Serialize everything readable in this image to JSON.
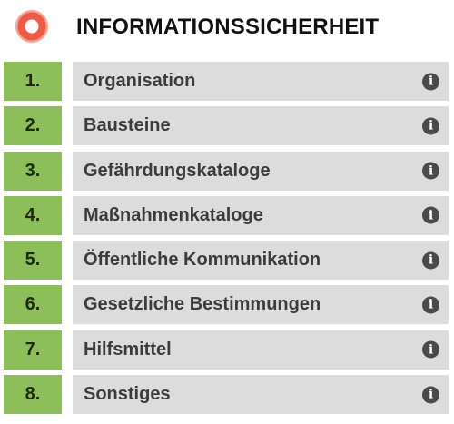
{
  "header": {
    "title": "INFORMATIONSSICHERHEIT",
    "logo_icon": "orange-circle-logo-icon"
  },
  "colors": {
    "number_bg": "#8cbf5a",
    "item_bg": "#dcdcdc",
    "info_icon": "#4a4a4a",
    "logo": "#ef5a44"
  },
  "items": [
    {
      "number": "1.",
      "label": "Organisation",
      "icon": "info-icon"
    },
    {
      "number": "2.",
      "label": "Bausteine",
      "icon": "info-icon"
    },
    {
      "number": "3.",
      "label": "Gefährdungskataloge",
      "icon": "info-icon"
    },
    {
      "number": "4.",
      "label": "Maßnahmenkataloge",
      "icon": "info-icon"
    },
    {
      "number": "5.",
      "label": "Öffentliche Kommunikation",
      "icon": "info-icon"
    },
    {
      "number": "6.",
      "label": "Gesetzliche Bestimmungen",
      "icon": "info-icon"
    },
    {
      "number": "7.",
      "label": "Hilfsmittel",
      "icon": "info-icon"
    },
    {
      "number": "8.",
      "label": "Sonstiges",
      "icon": "info-icon"
    }
  ]
}
